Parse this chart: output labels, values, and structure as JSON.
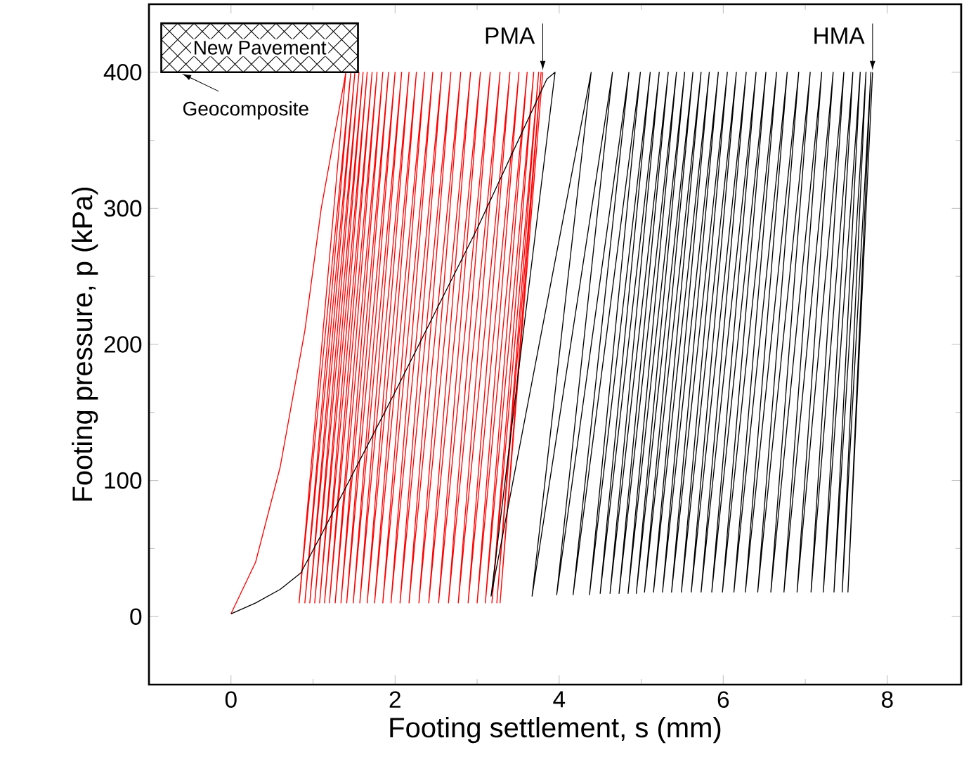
{
  "chart_data": {
    "type": "line",
    "xlabel": "Footing settlement, s (mm)",
    "ylabel": "Footing pressure, p (kPa)",
    "xlim": [
      -1,
      8.9
    ],
    "ylim": [
      -50,
      450
    ],
    "xticks": [
      0,
      2,
      4,
      6,
      8
    ],
    "yticks": [
      0,
      100,
      200,
      300,
      400
    ],
    "marker": "none",
    "line_style": "solid",
    "annotations": [
      "New Pavement",
      "Geocomposite",
      {
        "text": "PMA",
        "x": 3.8,
        "y": 400
      },
      {
        "text": "HMA",
        "x": 7.82,
        "y": 400
      }
    ],
    "series": [
      {
        "color": "#ff0000",
        "x": [
          0,
          0.3,
          0.6,
          0.9,
          1.1,
          1.4,
          0.83,
          1.46,
          0.9,
          1.51,
          0.96,
          1.56,
          1.02,
          1.61,
          1.08,
          1.66,
          1.14,
          1.72,
          1.2,
          1.78,
          1.27,
          1.85,
          1.34,
          1.92,
          1.41,
          2.0,
          1.49,
          2.08,
          1.57,
          2.17,
          1.66,
          2.26,
          1.75,
          2.36,
          1.85,
          2.46,
          1.95,
          2.57,
          2.06,
          2.68,
          2.17,
          2.8,
          2.29,
          2.92,
          2.41,
          3.04,
          2.53,
          3.16,
          2.65,
          3.28,
          2.77,
          3.4,
          2.89,
          3.51,
          3.0,
          3.61,
          3.1,
          3.69,
          3.18,
          3.75,
          3.24,
          3.78,
          3.28,
          3.8
        ],
        "values": [
          2,
          40,
          110,
          210,
          300,
          400,
          10,
          400,
          10,
          400,
          10,
          400,
          10,
          400,
          10,
          400,
          10,
          400,
          10,
          400,
          10,
          400,
          10,
          400,
          10,
          400,
          10,
          400,
          10,
          400,
          10,
          400,
          10,
          400,
          10,
          400,
          10,
          400,
          10,
          400,
          10,
          400,
          10,
          400,
          10,
          400,
          10,
          400,
          10,
          400,
          10,
          400,
          10,
          400,
          10,
          400,
          10,
          400,
          10,
          400,
          10,
          400,
          10,
          400
        ]
      },
      {
        "color": "#000000",
        "x": [
          0,
          0.3,
          0.6,
          0.85,
          1.1,
          2.0,
          3.0,
          3.85,
          3.95,
          3.17,
          4.39,
          3.67,
          4.65,
          3.97,
          4.85,
          4.17,
          4.99,
          4.37,
          5.11,
          4.5,
          5.22,
          4.62,
          5.33,
          4.73,
          5.43,
          4.84,
          5.53,
          4.94,
          5.63,
          5.04,
          5.73,
          5.15,
          5.83,
          5.26,
          5.94,
          5.37,
          6.05,
          5.49,
          6.16,
          5.61,
          6.28,
          5.73,
          6.4,
          5.86,
          6.52,
          5.99,
          6.65,
          6.13,
          6.78,
          6.27,
          6.92,
          6.42,
          7.06,
          6.58,
          7.2,
          6.74,
          7.34,
          6.9,
          7.47,
          7.07,
          7.58,
          7.22,
          7.67,
          7.35,
          7.74,
          7.45,
          7.8,
          7.52,
          7.82
        ],
        "values": [
          2,
          10,
          20,
          32,
          60,
          165,
          285,
          395,
          400,
          15,
          400,
          15,
          400,
          16,
          400,
          16,
          400,
          16,
          400,
          17,
          400,
          17,
          400,
          17,
          400,
          17,
          400,
          17,
          400,
          18,
          400,
          18,
          400,
          18,
          400,
          18,
          400,
          18,
          400,
          18,
          400,
          18,
          400,
          18,
          400,
          18,
          400,
          18,
          400,
          18,
          400,
          18,
          400,
          18,
          400,
          18,
          400,
          18,
          400,
          18,
          400,
          18,
          400,
          18,
          400,
          18,
          400,
          18,
          400
        ]
      }
    ]
  }
}
